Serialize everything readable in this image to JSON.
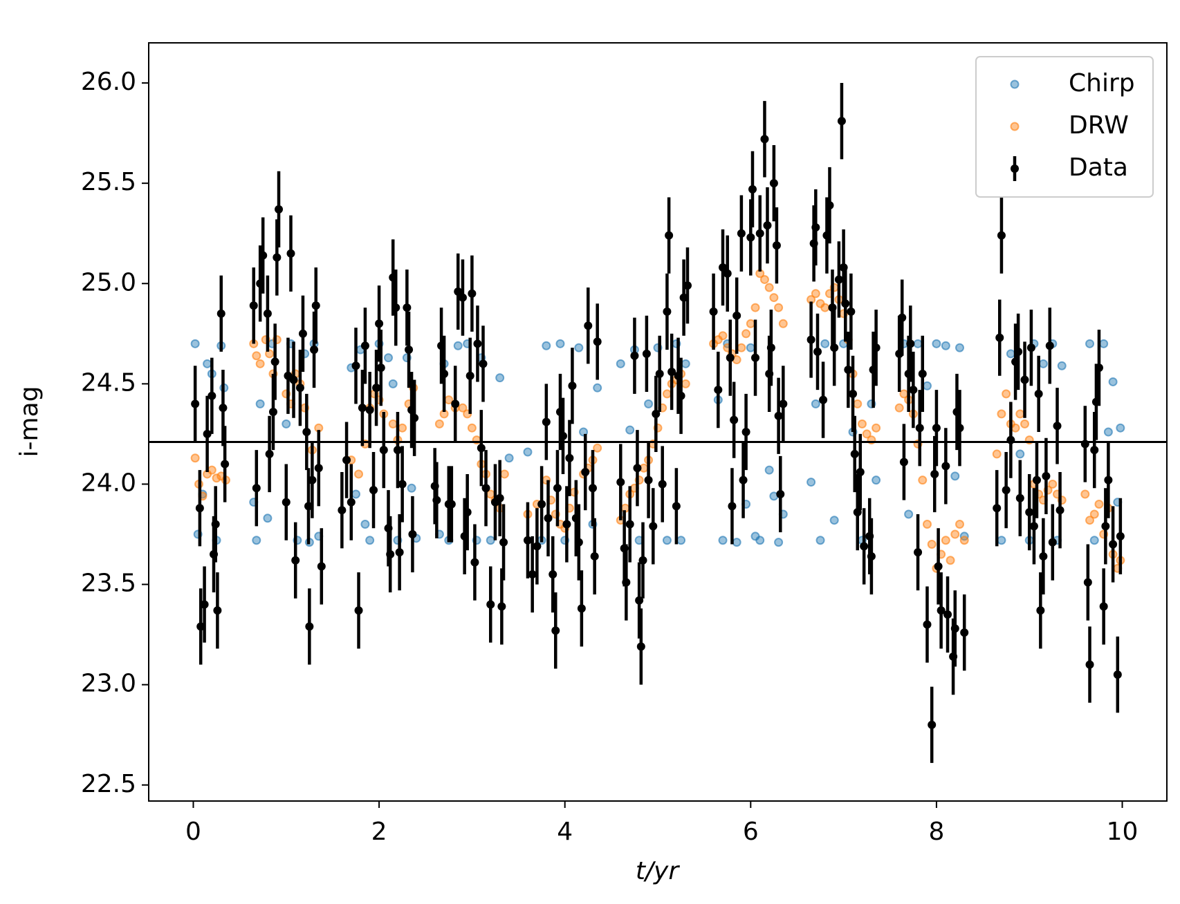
{
  "chart_data": {
    "type": "scatter",
    "xlabel": "t/yr",
    "ylabel": "i-mag",
    "xlim": [
      -0.48,
      10.48
    ],
    "xticks": [
      0,
      2,
      4,
      6,
      8,
      10
    ],
    "ylim": [
      22.42,
      26.2
    ],
    "yticks": [
      22.5,
      {
        "value": 23,
        "label": "23.0"
      },
      23.5,
      {
        "value": 24,
        "label": "24.0"
      },
      24.5,
      {
        "value": 25,
        "label": "25.0"
      },
      25.5,
      {
        "value": 26,
        "label": "26.0"
      }
    ],
    "hline": 24.21,
    "legend": "upper right",
    "series": [
      {
        "name": "Chirp",
        "color": "#1f77b4",
        "x": [
          0.02,
          0.05,
          0.1,
          0.15,
          0.2,
          0.25,
          0.3,
          0.33,
          0.65,
          0.68,
          0.72,
          0.8,
          0.85,
          1.0,
          1.05,
          1.12,
          1.2,
          1.25,
          1.3,
          1.35,
          1.7,
          1.75,
          1.8,
          1.85,
          1.9,
          2.0,
          2.1,
          2.15,
          2.2,
          2.3,
          2.35,
          2.4,
          2.65,
          2.7,
          2.75,
          2.85,
          2.95,
          3.05,
          3.1,
          3.2,
          3.3,
          3.4,
          3.6,
          3.75,
          3.8,
          3.95,
          4.0,
          4.15,
          4.2,
          4.3,
          4.35,
          4.6,
          4.7,
          4.75,
          4.8,
          4.9,
          5.0,
          5.1,
          5.2,
          5.25,
          5.3,
          5.65,
          5.7,
          5.75,
          5.85,
          5.95,
          6.0,
          6.05,
          6.1,
          6.2,
          6.25,
          6.3,
          6.35,
          6.65,
          6.7,
          6.75,
          6.8,
          6.9,
          7.0,
          7.1,
          7.2,
          7.3,
          7.35,
          7.65,
          7.7,
          7.8,
          7.9,
          8.0,
          8.1,
          8.2,
          8.25,
          8.3,
          8.7,
          8.8,
          8.9,
          9.0,
          9.05,
          9.15,
          9.25,
          9.3,
          9.35,
          9.65,
          9.7,
          9.8,
          9.85,
          9.9,
          9.95,
          9.98
        ],
        "values": [
          24.7,
          23.75,
          23.95,
          24.6,
          24.55,
          23.72,
          24.69,
          24.48,
          23.91,
          23.72,
          24.4,
          23.83,
          24.7,
          24.3,
          24.7,
          23.72,
          24.65,
          23.71,
          24.7,
          23.74,
          24.58,
          23.95,
          24.67,
          23.8,
          23.72,
          24.7,
          24.63,
          24.5,
          23.72,
          24.63,
          23.98,
          23.73,
          23.75,
          24.6,
          23.72,
          24.69,
          24.7,
          23.72,
          24.63,
          23.72,
          24.53,
          24.13,
          24.16,
          23.72,
          24.69,
          24.7,
          23.72,
          24.68,
          24.26,
          23.8,
          24.48,
          24.6,
          24.27,
          24.67,
          23.72,
          24.4,
          24.68,
          23.72,
          24.7,
          23.72,
          24.6,
          24.42,
          23.72,
          24.7,
          23.71,
          23.9,
          24.68,
          23.74,
          23.72,
          24.07,
          23.94,
          23.71,
          23.85,
          24.01,
          24.4,
          23.72,
          24.7,
          23.82,
          24.7,
          24.26,
          23.72,
          24.4,
          24.02,
          24.7,
          23.85,
          24.7,
          24.49,
          24.7,
          24.69,
          24.04,
          24.68,
          23.74,
          23.72,
          24.65,
          24.15,
          23.72,
          24.7,
          24.6,
          24.7,
          23.72,
          24.59,
          24.7,
          23.72,
          24.7,
          24.26,
          24.51,
          23.91,
          24.28
        ]
      },
      {
        "name": "DRW",
        "color": "#ff7f0e",
        "x": [
          0.02,
          0.06,
          0.1,
          0.15,
          0.2,
          0.25,
          0.3,
          0.35,
          0.65,
          0.68,
          0.72,
          0.78,
          0.82,
          0.86,
          0.9,
          1.0,
          1.05,
          1.1,
          1.15,
          1.2,
          1.28,
          1.35,
          1.7,
          1.78,
          1.85,
          1.9,
          1.95,
          2.0,
          2.05,
          2.15,
          2.2,
          2.25,
          2.32,
          2.37,
          2.65,
          2.7,
          2.75,
          2.82,
          2.9,
          2.95,
          3.0,
          3.05,
          3.1,
          3.15,
          3.2,
          3.25,
          3.3,
          3.35,
          3.6,
          3.7,
          3.8,
          3.85,
          3.9,
          3.95,
          4.0,
          4.05,
          4.1,
          4.2,
          4.25,
          4.3,
          4.35,
          4.6,
          4.65,
          4.7,
          4.75,
          4.8,
          4.85,
          4.9,
          4.95,
          5.0,
          5.05,
          5.1,
          5.15,
          5.2,
          5.25,
          5.3,
          5.6,
          5.65,
          5.7,
          5.75,
          5.8,
          5.85,
          5.9,
          5.95,
          6.0,
          6.05,
          6.1,
          6.15,
          6.2,
          6.25,
          6.3,
          6.35,
          6.65,
          6.7,
          6.75,
          6.8,
          6.85,
          6.9,
          6.95,
          7.0,
          7.05,
          7.1,
          7.15,
          7.2,
          7.25,
          7.3,
          7.35,
          7.6,
          7.65,
          7.7,
          7.75,
          7.8,
          7.85,
          7.9,
          7.95,
          8.0,
          8.05,
          8.1,
          8.15,
          8.2,
          8.25,
          8.3,
          8.65,
          8.7,
          8.75,
          8.8,
          8.85,
          8.9,
          8.95,
          9.0,
          9.05,
          9.1,
          9.15,
          9.2,
          9.25,
          9.3,
          9.35,
          9.6,
          9.65,
          9.7,
          9.75,
          9.8,
          9.85,
          9.9,
          9.95,
          9.98
        ],
        "values": [
          24.13,
          24.0,
          23.94,
          24.05,
          24.07,
          24.03,
          24.04,
          24.02,
          24.7,
          24.64,
          24.6,
          24.72,
          24.65,
          24.55,
          24.72,
          24.45,
          24.4,
          24.55,
          24.5,
          24.38,
          24.17,
          24.28,
          24.12,
          24.05,
          24.2,
          24.38,
          24.45,
          24.42,
          24.35,
          24.3,
          24.22,
          24.28,
          24.4,
          24.48,
          24.3,
          24.35,
          24.42,
          24.38,
          24.38,
          24.35,
          24.28,
          24.22,
          24.1,
          24.05,
          23.95,
          23.92,
          23.88,
          24.05,
          23.85,
          23.9,
          24.02,
          23.92,
          23.85,
          23.8,
          23.78,
          23.88,
          23.96,
          24.05,
          24.08,
          24.12,
          24.18,
          23.82,
          23.88,
          23.95,
          23.98,
          24.02,
          24.08,
          24.12,
          24.2,
          24.28,
          24.38,
          24.45,
          24.5,
          24.52,
          24.55,
          24.5,
          24.7,
          24.72,
          24.74,
          24.68,
          24.65,
          24.62,
          24.68,
          24.75,
          24.8,
          24.88,
          25.05,
          25.02,
          24.98,
          24.93,
          24.88,
          24.8,
          24.92,
          24.95,
          24.9,
          24.88,
          24.95,
          24.98,
          24.92,
          24.85,
          24.72,
          24.55,
          24.4,
          24.3,
          24.25,
          24.22,
          24.28,
          24.38,
          24.45,
          24.42,
          24.35,
          24.2,
          24.02,
          23.8,
          23.7,
          23.58,
          23.65,
          23.72,
          23.62,
          23.75,
          23.8,
          23.72,
          24.15,
          24.35,
          24.45,
          24.3,
          24.28,
          24.35,
          24.3,
          24.22,
          24.0,
          23.95,
          23.92,
          23.97,
          24.0,
          23.95,
          23.92,
          23.95,
          23.82,
          23.85,
          23.9,
          23.75,
          23.88,
          23.65,
          23.58,
          23.62
        ]
      },
      {
        "name": "Data",
        "color": "#000000",
        "yerr": 0.19,
        "x": [
          0.02,
          0.07,
          0.08,
          0.12,
          0.15,
          0.2,
          0.22,
          0.24,
          0.26,
          0.3,
          0.32,
          0.34,
          0.65,
          0.68,
          0.72,
          0.75,
          0.8,
          0.82,
          0.86,
          0.88,
          0.9,
          0.92,
          1.0,
          1.02,
          1.05,
          1.08,
          1.1,
          1.15,
          1.18,
          1.22,
          1.24,
          1.25,
          1.28,
          1.3,
          1.32,
          1.35,
          1.38,
          1.6,
          1.65,
          1.7,
          1.75,
          1.78,
          1.82,
          1.85,
          1.9,
          1.94,
          1.97,
          2.0,
          2.02,
          2.05,
          2.1,
          2.12,
          2.15,
          2.18,
          2.2,
          2.22,
          2.25,
          2.3,
          2.32,
          2.35,
          2.38,
          2.36,
          2.6,
          2.62,
          2.67,
          2.7,
          2.75,
          2.78,
          2.82,
          2.85,
          2.9,
          2.92,
          2.95,
          2.98,
          3.0,
          3.03,
          3.06,
          3.1,
          3.12,
          3.15,
          3.2,
          3.25,
          3.3,
          3.32,
          3.34,
          3.6,
          3.65,
          3.7,
          3.75,
          3.8,
          3.82,
          3.87,
          3.9,
          3.92,
          3.95,
          3.98,
          4.02,
          4.05,
          4.08,
          4.12,
          4.15,
          4.18,
          4.22,
          4.25,
          4.3,
          4.32,
          4.35,
          4.6,
          4.64,
          4.66,
          4.7,
          4.75,
          4.78,
          4.8,
          4.82,
          4.84,
          4.88,
          4.9,
          4.95,
          4.98,
          5.02,
          5.05,
          5.1,
          5.12,
          5.15,
          5.2,
          5.22,
          5.25,
          5.28,
          5.32,
          5.6,
          5.65,
          5.7,
          5.75,
          5.78,
          5.8,
          5.82,
          5.85,
          5.9,
          5.92,
          5.95,
          6.0,
          6.02,
          6.05,
          6.1,
          6.15,
          6.18,
          6.2,
          6.22,
          6.25,
          6.28,
          6.3,
          6.32,
          6.35,
          6.65,
          6.68,
          6.7,
          6.72,
          6.78,
          6.82,
          6.85,
          6.88,
          6.9,
          6.95,
          6.98,
          7.0,
          7.02,
          7.05,
          7.08,
          7.1,
          7.12,
          7.15,
          7.18,
          7.22,
          7.28,
          7.3,
          7.32,
          7.35,
          7.6,
          7.63,
          7.65,
          7.7,
          7.72,
          7.75,
          7.8,
          7.82,
          7.85,
          7.9,
          7.95,
          7.98,
          8.0,
          8.02,
          8.05,
          8.1,
          8.12,
          8.18,
          8.2,
          8.22,
          8.25,
          8.3,
          8.65,
          8.68,
          8.7,
          8.75,
          8.8,
          8.85,
          8.88,
          8.9,
          8.95,
          9.0,
          9.02,
          9.05,
          9.08,
          9.1,
          9.12,
          9.15,
          9.18,
          9.22,
          9.25,
          9.3,
          9.33,
          9.6,
          9.63,
          9.65,
          9.7,
          9.72,
          9.75,
          9.8,
          9.82,
          9.85,
          9.9,
          9.95,
          9.98
        ],
        "values": [
          24.4,
          23.88,
          23.29,
          23.4,
          24.25,
          24.44,
          23.65,
          23.8,
          23.37,
          24.85,
          24.38,
          24.1,
          24.89,
          23.98,
          25.0,
          25.14,
          24.85,
          24.15,
          24.36,
          24.61,
          25.13,
          25.37,
          23.91,
          24.54,
          25.15,
          24.52,
          23.62,
          24.48,
          24.75,
          24.26,
          23.89,
          23.29,
          24.02,
          24.67,
          24.89,
          24.08,
          23.59,
          23.87,
          24.12,
          23.91,
          24.59,
          23.37,
          24.38,
          24.69,
          24.37,
          23.97,
          24.48,
          24.8,
          24.58,
          24.17,
          23.78,
          23.65,
          25.03,
          24.88,
          24.17,
          23.66,
          24.0,
          24.88,
          24.67,
          24.37,
          24.33,
          23.75,
          23.99,
          23.92,
          24.69,
          24.55,
          23.9,
          23.9,
          24.4,
          24.96,
          24.93,
          23.74,
          23.86,
          24.54,
          24.95,
          23.61,
          24.7,
          24.18,
          24.6,
          23.98,
          23.4,
          23.91,
          23.93,
          23.39,
          23.71,
          23.72,
          23.55,
          23.69,
          23.9,
          24.31,
          23.83,
          23.55,
          23.27,
          23.98,
          24.36,
          24.24,
          23.8,
          24.13,
          24.49,
          23.83,
          23.71,
          23.38,
          24.06,
          24.79,
          23.98,
          23.64,
          24.71,
          24.01,
          23.68,
          23.51,
          23.8,
          24.64,
          24.08,
          23.42,
          23.19,
          23.62,
          24.65,
          24.02,
          23.79,
          24.35,
          24.55,
          24.0,
          24.86,
          25.24,
          24.56,
          23.89,
          24.54,
          24.44,
          24.93,
          24.99,
          24.86,
          24.47,
          25.08,
          25.05,
          24.63,
          23.89,
          24.32,
          24.84,
          25.25,
          24.02,
          24.26,
          25.23,
          25.47,
          24.63,
          25.25,
          25.72,
          25.29,
          24.55,
          24.68,
          25.5,
          25.19,
          24.34,
          23.95,
          24.4,
          24.72,
          25.2,
          25.28,
          24.66,
          24.42,
          25.24,
          25.39,
          24.88,
          24.68,
          25.02,
          25.81,
          25.08,
          24.9,
          24.57,
          24.86,
          24.45,
          24.15,
          23.86,
          24.06,
          23.69,
          23.74,
          23.64,
          24.57,
          24.68,
          24.65,
          24.83,
          24.11,
          24.55,
          24.7,
          24.47,
          23.66,
          24.28,
          24.55,
          23.3,
          22.8,
          24.05,
          24.28,
          23.59,
          23.37,
          24.09,
          23.35,
          23.14,
          23.28,
          24.36,
          24.28,
          23.26,
          23.88,
          24.73,
          25.24,
          23.97,
          24.22,
          24.61,
          24.66,
          23.93,
          24.52,
          23.86,
          24.68,
          23.79,
          24.02,
          24.45,
          23.37,
          23.64,
          24.04,
          24.69,
          23.71,
          24.29,
          23.87,
          24.2,
          23.51,
          23.1,
          24.17,
          24.41,
          24.58,
          23.39,
          23.79,
          24.02,
          23.7,
          23.05,
          23.74
        ]
      }
    ]
  }
}
